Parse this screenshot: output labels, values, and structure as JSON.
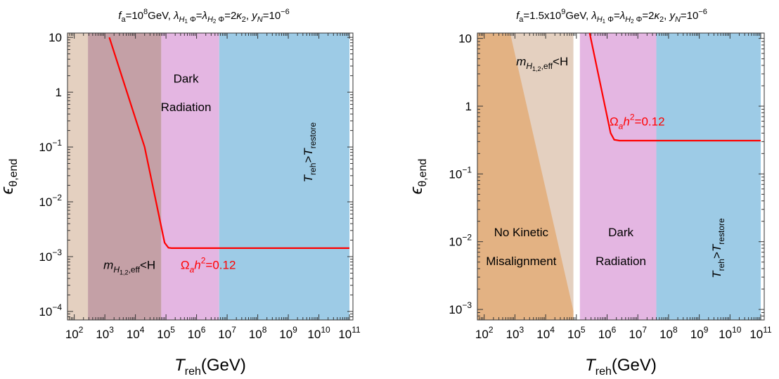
{
  "colors": {
    "beige": "#e4d0c0",
    "mauve": "#c4a0a6",
    "pink": "#e4b6e2",
    "blue": "#9dcbe6",
    "orange": "#e3b283",
    "curve": "#ff0000"
  },
  "chart_data": [
    {
      "type": "line",
      "title": "f_a=10^8GeV, λ_{H1 Φ}=λ_{H2 Φ}=2κ_2, y_N=10^-6",
      "title_parts": {
        "fa_sym": "f",
        "fa_sub": "a",
        "fa_val": "=10",
        "fa_exp": "8",
        "fa_unit": "GeV, ",
        "lam_sym": "λ",
        "lam1_sub": "H",
        "lam1_subsub": "1",
        "lam1_phi": " Φ",
        "eq1": "=",
        "lam2_subsub": "2",
        "eq2": "=2",
        "kappa": "κ",
        "kappa_sub": "2",
        "comma": ", ",
        "y_sym": "y",
        "y_sub": "N",
        "y_val": "=10",
        "y_exp": "−6"
      },
      "xlabel": "T_reh(GeV)",
      "xlabel_parts": {
        "sym": "T",
        "sub": "reh",
        "unit": "(GeV)"
      },
      "ylabel": "ε_θ,end",
      "ylabel_parts": {
        "sym": "ϵ",
        "sub": "θ,end"
      },
      "xscale": "log",
      "yscale": "log",
      "xlim": [
        60,
        130000000000
      ],
      "ylim": [
        7e-05,
        12
      ],
      "xticks": [
        {
          "v": 100,
          "b": "10",
          "e": "2"
        },
        {
          "v": 1000,
          "b": "10",
          "e": "3"
        },
        {
          "v": 10000,
          "b": "10",
          "e": "4"
        },
        {
          "v": 100000,
          "b": "10",
          "e": "5"
        },
        {
          "v": 1000000,
          "b": "10",
          "e": "6"
        },
        {
          "v": 10000000,
          "b": "10",
          "e": "7"
        },
        {
          "v": 100000000,
          "b": "10",
          "e": "8"
        },
        {
          "v": 1000000000,
          "b": "10",
          "e": "9"
        },
        {
          "v": 10000000000,
          "b": "10",
          "e": "10"
        },
        {
          "v": 100000000000,
          "b": "10",
          "e": "11"
        }
      ],
      "yticks": [
        {
          "v": 0.0001,
          "b": "10",
          "e": "−4"
        },
        {
          "v": 0.001,
          "b": "10",
          "e": "−3"
        },
        {
          "v": 0.01,
          "b": "10",
          "e": "−2"
        },
        {
          "v": 0.1,
          "b": "10",
          "e": "−1"
        },
        {
          "v": 1,
          "b": "1",
          "e": ""
        },
        {
          "v": 10,
          "b": "10",
          "e": ""
        }
      ],
      "regions": [
        {
          "x0": 60,
          "x1": 280,
          "color": "#e4d0c0"
        },
        {
          "x0": 280,
          "x1": 70000,
          "color": "#c4a0a6"
        },
        {
          "x0": 70000,
          "x1": 5500000,
          "color": "#e4b6e2"
        },
        {
          "x0": 5500000,
          "x1": 100000000000,
          "color": "#9dcbe6"
        }
      ],
      "series": [
        {
          "x": [
            1400,
            20000,
            90000,
            120000,
            150000,
            1000000,
            100000000000
          ],
          "y": [
            10,
            0.1,
            0.0018,
            0.00145,
            0.00143,
            0.00143,
            0.00143
          ]
        }
      ],
      "annotations": [
        {
          "parts": {
            "sym": "m",
            "sub": "H",
            "subsub": "1,2",
            "subtail": ",eff",
            "tail": "<H"
          },
          "x": 900,
          "y": 0.0006,
          "anchor": "start",
          "color": "#000"
        },
        {
          "text": "Dark",
          "x": 450000,
          "y": 1.5,
          "anchor": "middle",
          "color": "#000"
        },
        {
          "text": "Radiation",
          "x": 450000,
          "y": 0.45,
          "anchor": "middle",
          "color": "#000"
        },
        {
          "parts": {
            "sym": "Ω",
            "sub": "a",
            "mid": "h",
            "exp": "2",
            "tail": "=0.12"
          },
          "x": 300000,
          "y": 0.0006,
          "anchor": "start",
          "color": "#ff0000"
        },
        {
          "parts": {
            "sym": "T",
            "sub": "reh",
            "mid": ">",
            "sym2": "T",
            "sub2": "restore"
          },
          "x": 6000000000,
          "y": 0.08,
          "rotate": -90,
          "color": "#000"
        }
      ]
    },
    {
      "type": "line",
      "title": "f_a=1.5x10^9GeV, λ_{H1 Φ}=λ_{H2 Φ}=2κ_2, y_N=10^-6",
      "title_parts": {
        "fa_sym": "f",
        "fa_sub": "a",
        "fa_val": "=1.5x10",
        "fa_exp": "9",
        "fa_unit": "GeV, ",
        "lam_sym": "λ",
        "lam1_sub": "H",
        "lam1_subsub": "1",
        "lam1_phi": " Φ",
        "eq1": "=",
        "lam2_subsub": "2",
        "eq2": "=2",
        "kappa": "κ",
        "kappa_sub": "2",
        "comma": ", ",
        "y_sym": "y",
        "y_sub": "N",
        "y_val": "=10",
        "y_exp": "−6"
      },
      "xlabel": "T_reh(GeV)",
      "xlabel_parts": {
        "sym": "T",
        "sub": "reh",
        "unit": "(GeV)"
      },
      "ylabel": "ε_θ,end",
      "ylabel_parts": {
        "sym": "ϵ",
        "sub": "θ,end"
      },
      "xscale": "log",
      "yscale": "log",
      "xlim": [
        60,
        130000000000
      ],
      "ylim": [
        0.0007,
        12
      ],
      "xticks": [
        {
          "v": 100,
          "b": "10",
          "e": "2"
        },
        {
          "v": 1000,
          "b": "10",
          "e": "3"
        },
        {
          "v": 10000,
          "b": "10",
          "e": "4"
        },
        {
          "v": 100000,
          "b": "10",
          "e": "5"
        },
        {
          "v": 1000000,
          "b": "10",
          "e": "6"
        },
        {
          "v": 10000000,
          "b": "10",
          "e": "7"
        },
        {
          "v": 100000000,
          "b": "10",
          "e": "8"
        },
        {
          "v": 1000000000,
          "b": "10",
          "e": "9"
        },
        {
          "v": 10000000000,
          "b": "10",
          "e": "10"
        },
        {
          "v": 100000000000,
          "b": "10",
          "e": "11"
        }
      ],
      "yticks": [
        {
          "v": 0.001,
          "b": "10",
          "e": "−3"
        },
        {
          "v": 0.01,
          "b": "10",
          "e": "−2"
        },
        {
          "v": 0.1,
          "b": "10",
          "e": "−1"
        },
        {
          "v": 1,
          "b": "1",
          "e": ""
        },
        {
          "v": 10,
          "b": "10",
          "e": ""
        }
      ],
      "regions": [
        {
          "x0": 60,
          "x1": 80000,
          "color": "#e4d0c0"
        },
        {
          "x0": 130000,
          "x1": 40000000,
          "color": "#e4b6e2"
        },
        {
          "x0": 40000000,
          "x1": 100000000000,
          "color": "#9dcbe6"
        }
      ],
      "polygons": [
        {
          "points": [
            [
              60,
              12
            ],
            [
              700,
              12
            ],
            [
              80000,
              0.00095
            ],
            [
              80000,
              0.0007
            ],
            [
              60,
              0.0007
            ]
          ],
          "color": "#e3b283"
        }
      ],
      "series": [
        {
          "x": [
            270000,
            1300000,
            1700000,
            2500000,
            100000000000
          ],
          "y": [
            12,
            0.4,
            0.32,
            0.31,
            0.31
          ]
        }
      ],
      "annotations": [
        {
          "parts": {
            "sym": "m",
            "sub": "H",
            "subsub": "1,2",
            "subtail": ",eff",
            "tail": "<H"
          },
          "x": 1100,
          "y": 4,
          "anchor": "start",
          "color": "#000"
        },
        {
          "text": "No Kinetic",
          "x": 1600,
          "y": 0.012,
          "anchor": "middle",
          "color": "#000"
        },
        {
          "text": "Misalignment",
          "x": 1600,
          "y": 0.0045,
          "anchor": "middle",
          "color": "#000"
        },
        {
          "text": "Dark",
          "x": 2800000,
          "y": 0.012,
          "anchor": "middle",
          "color": "#000"
        },
        {
          "text": "Radiation",
          "x": 2800000,
          "y": 0.0045,
          "anchor": "middle",
          "color": "#000"
        },
        {
          "parts": {
            "sym": "Ω",
            "sub": "a",
            "mid": "h",
            "exp": "2",
            "tail": "=0.12"
          },
          "x": 1200000,
          "y": 0.52,
          "anchor": "start",
          "color": "#ff0000"
        },
        {
          "parts": {
            "sym": "T",
            "sub": "reh",
            "mid": ">",
            "sym2": "T",
            "sub2": "restore"
          },
          "x": 5000000000,
          "y": 0.008,
          "rotate": -90,
          "color": "#000"
        }
      ]
    }
  ]
}
